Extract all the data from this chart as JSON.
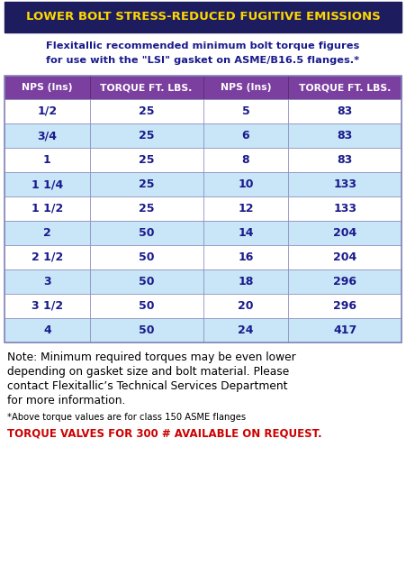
{
  "title": "LOWER BOLT STRESS-REDUCED FUGITIVE EMISSIONS",
  "subtitle_line1": "Flexitallic recommended minimum bolt torque figures",
  "subtitle_line2": "for use with the \"LSI\" gasket on ASME/B16.5 flanges.*",
  "col_headers": [
    "NPS (Ins)",
    "TORQUE FT. LBS.",
    "NPS (Ins)",
    "TORQUE FT. LBS."
  ],
  "rows": [
    [
      "1/2",
      "25",
      "5",
      "83"
    ],
    [
      "3/4",
      "25",
      "6",
      "83"
    ],
    [
      "1",
      "25",
      "8",
      "83"
    ],
    [
      "1 1/4",
      "25",
      "10",
      "133"
    ],
    [
      "1 1/2",
      "25",
      "12",
      "133"
    ],
    [
      "2",
      "50",
      "14",
      "204"
    ],
    [
      "2 1/2",
      "50",
      "16",
      "204"
    ],
    [
      "3",
      "50",
      "18",
      "296"
    ],
    [
      "3 1/2",
      "50",
      "20",
      "296"
    ],
    [
      "4",
      "50",
      "24",
      "417"
    ]
  ],
  "note_line1": "Note: Minimum required torques may be even lower",
  "note_line2": "depending on gasket size and bolt material. Please",
  "note_line3": "contact Flexitallic’s Technical Services Department",
  "note_line4": "for more information.",
  "footnote": "*Above torque values are for class 150 ASME flanges",
  "bottom_text": "TORQUE VALVES FOR 300 # AVAILABLE ON REQUEST.",
  "title_bg": "#1c1c5e",
  "title_color": "#ffd700",
  "header_bg": "#7b3fa0",
  "header_color": "#ffffff",
  "row_bg_blue": "#c8e6f8",
  "row_bg_white": "#ffffff",
  "table_border_color": "#7b7bb0",
  "data_color": "#1a1a8c",
  "subtitle_color": "#1a1a8c",
  "note_color": "#000000",
  "footnote_color": "#000000",
  "bottom_text_color": "#cc0000",
  "fig_w": 4.51,
  "fig_h": 6.28,
  "dpi": 100
}
